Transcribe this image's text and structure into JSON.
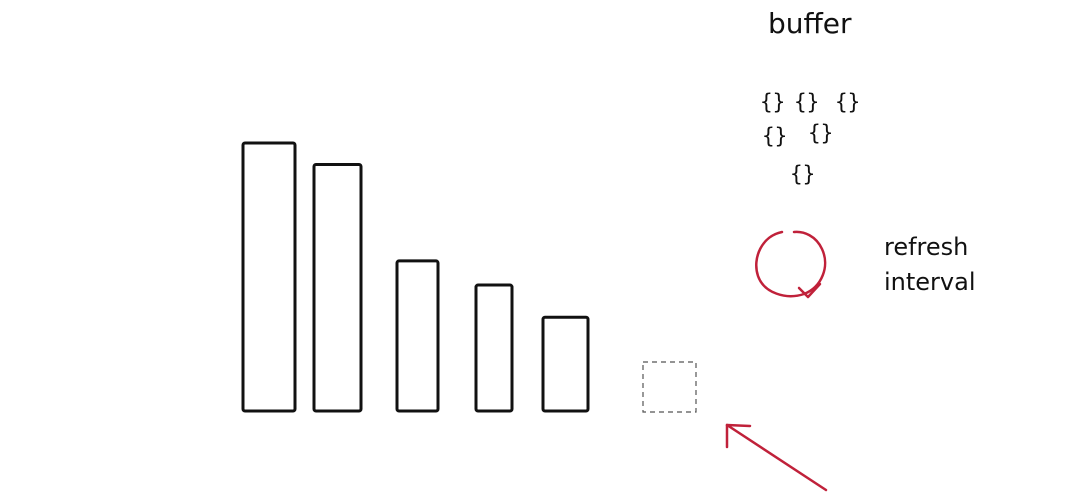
{
  "buffer": {
    "label": "buffer",
    "items": [
      "{}",
      "{}",
      "{}",
      "{}",
      "{}",
      "{}"
    ]
  },
  "refresh": {
    "line1": "refresh",
    "line2": "interval"
  },
  "bars": [
    {
      "level": 1.0
    },
    {
      "level": 0.92
    },
    {
      "level": 0.56
    },
    {
      "level": 0.47
    },
    {
      "level": 0.35
    }
  ],
  "colors": {
    "ink": "#111111",
    "accent": "#c0213a",
    "dashed": "#555555"
  },
  "icons": {
    "refresh": "refresh-loop-icon",
    "arrow": "incoming-arrow-icon"
  }
}
